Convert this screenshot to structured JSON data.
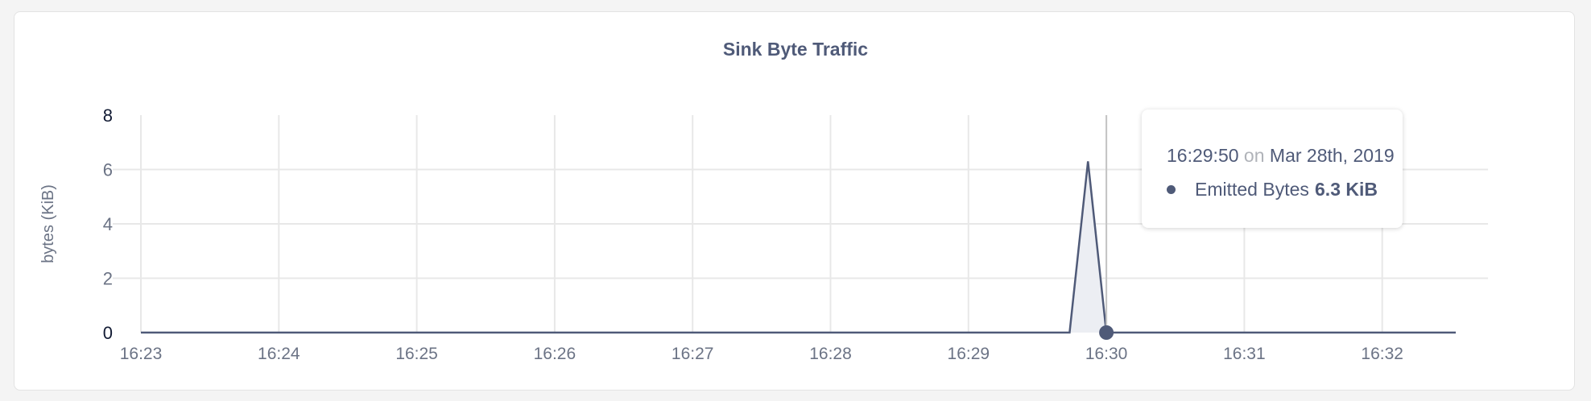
{
  "chart_data": {
    "type": "area",
    "title": "Sink Byte Traffic",
    "ylabel": "bytes (KiB)",
    "xlabel": "",
    "x_ticks": [
      "16:23",
      "16:24",
      "16:25",
      "16:26",
      "16:27",
      "16:28",
      "16:29",
      "16:30",
      "16:31",
      "16:32"
    ],
    "y_ticks": [
      0,
      2,
      4,
      6,
      8
    ],
    "ylim": [
      0,
      8
    ],
    "xlim": [
      "16:23:00",
      "16:32:32"
    ],
    "grid": true,
    "series": [
      {
        "name": "Emitted Bytes",
        "color": "#4f5a78",
        "points": [
          [
            "16:23:00",
            0
          ],
          [
            "16:29:44",
            0
          ],
          [
            "16:29:52",
            6.3
          ],
          [
            "16:30:00",
            0
          ],
          [
            "16:32:32",
            0
          ]
        ]
      }
    ]
  },
  "tooltip": {
    "time": "16:29:50",
    "on": "on",
    "date": "Mar 28th, 2019",
    "series_name": "Emitted Bytes",
    "value": "6.3 KiB",
    "hover_time": "16:30:00"
  }
}
